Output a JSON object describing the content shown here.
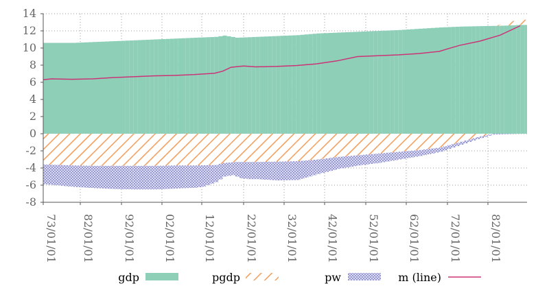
{
  "chart_data": {
    "type": "bar",
    "title": "",
    "xlabel": "",
    "ylabel": "",
    "ylim": [
      -8,
      14
    ],
    "yticks": [
      -8,
      -6,
      -4,
      -2,
      0,
      2,
      4,
      6,
      8,
      10,
      12,
      14
    ],
    "x_ticks": [
      "73/01/01",
      "82/01/01",
      "92/01/01",
      "02/01/01",
      "12/01/01",
      "22/01/01",
      "32/01/01",
      "42/01/01",
      "52/01/01",
      "62/01/01",
      "72/01/01",
      "82/01/01"
    ],
    "grid": true,
    "legend_position": "bottom",
    "stacked": true,
    "x_anchor_years": [
      1973,
      1982,
      1992,
      2002,
      2012,
      2022,
      2032,
      2042,
      2052,
      2062,
      2072,
      2082
    ],
    "x_range_years": [
      1973,
      2091
    ],
    "series": [
      {
        "name": "gdp",
        "kind": "bar",
        "color": "#8ecfb8",
        "x": [
          1973,
          1980,
          1985,
          1990,
          1995,
          2000,
          2005,
          2010,
          2015,
          2017,
          2020,
          2025,
          2030,
          2035,
          2040,
          2045,
          2050,
          2055,
          2060,
          2065,
          2070,
          2075,
          2080,
          2085,
          2090
        ],
        "values": [
          10.6,
          10.6,
          10.7,
          10.8,
          10.9,
          11.0,
          11.1,
          11.2,
          11.3,
          11.45,
          11.2,
          11.3,
          11.4,
          11.5,
          11.7,
          11.8,
          11.9,
          12.0,
          12.1,
          12.25,
          12.4,
          12.5,
          12.55,
          12.6,
          12.7
        ]
      },
      {
        "name": "pgdp",
        "kind": "bar",
        "color": "#f0a060",
        "x": [
          1973,
          1980,
          1985,
          1990,
          1995,
          2000,
          2005,
          2010,
          2015,
          2017,
          2020,
          2025,
          2030,
          2035,
          2040,
          2045,
          2050,
          2055,
          2060,
          2065,
          2070,
          2073,
          2076,
          2079,
          2082,
          2085,
          2088,
          2090
        ],
        "values": [
          -3.6,
          -3.7,
          -3.75,
          -3.75,
          -3.75,
          -3.75,
          -3.7,
          -3.7,
          -3.65,
          -3.4,
          -3.3,
          -3.3,
          -3.25,
          -3.2,
          -3.0,
          -2.7,
          -2.5,
          -2.3,
          -2.1,
          -1.9,
          -1.6,
          -1.2,
          -0.8,
          -0.4,
          -0.1,
          0.2,
          0.5,
          0.6
        ]
      },
      {
        "name": "pw",
        "kind": "bar",
        "color": "#8888d0",
        "x": [
          1973,
          1980,
          1985,
          1990,
          1995,
          2000,
          2005,
          2010,
          2012,
          2015,
          2017,
          2019,
          2021,
          2023,
          2025,
          2030,
          2035,
          2040,
          2045,
          2050,
          2055,
          2060,
          2065,
          2070,
          2075,
          2080,
          2083,
          2090
        ],
        "values": [
          -2.3,
          -2.5,
          -2.6,
          -2.7,
          -2.75,
          -2.75,
          -2.7,
          -2.6,
          -2.5,
          -2.0,
          -1.6,
          -1.5,
          -1.9,
          -2.0,
          -2.0,
          -2.2,
          -2.2,
          -1.7,
          -1.4,
          -1.2,
          -1.1,
          -0.9,
          -0.7,
          -0.5,
          -0.35,
          -0.2,
          -0.1,
          0.0
        ]
      },
      {
        "name": "m (line)",
        "kind": "line",
        "color": "#cc3377",
        "x": [
          1973,
          1975,
          1980,
          1985,
          1990,
          1995,
          2000,
          2005,
          2010,
          2015,
          2017,
          2019,
          2022,
          2025,
          2030,
          2035,
          2040,
          2045,
          2050,
          2055,
          2060,
          2065,
          2070,
          2072,
          2075,
          2080,
          2085,
          2090
        ],
        "values": [
          6.3,
          6.4,
          6.35,
          6.4,
          6.55,
          6.65,
          6.75,
          6.8,
          6.9,
          7.05,
          7.3,
          7.75,
          7.9,
          7.8,
          7.85,
          7.95,
          8.15,
          8.5,
          9.0,
          9.1,
          9.2,
          9.35,
          9.6,
          9.9,
          10.3,
          10.8,
          11.5,
          12.6
        ]
      }
    ]
  }
}
